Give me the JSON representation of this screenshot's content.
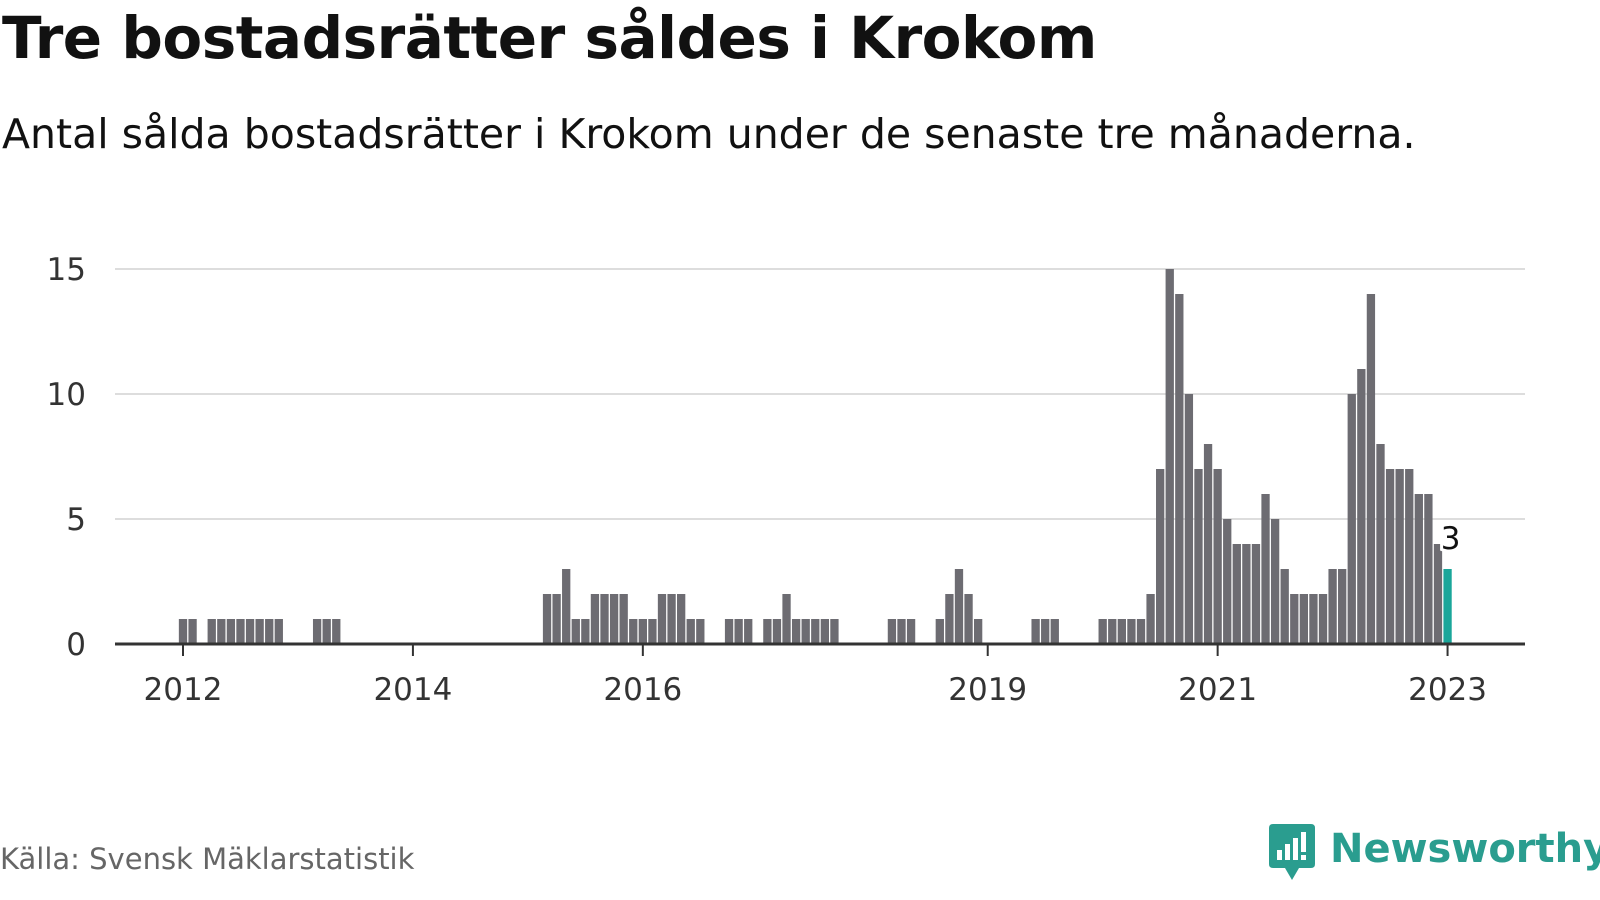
{
  "title": "Tre bostadsrätter såldes i Krokom",
  "subtitle": "Antal sålda bostadsrätter i Krokom under de senaste tre månaderna.",
  "source": "Källa: Svensk Mäklarstatistik",
  "brand": {
    "name": "Newsworthy",
    "icon": "newsworthy-logo-icon",
    "color": "#2a9d8f"
  },
  "colors": {
    "bar": "#6d6c72",
    "highlight": "#1aa69a",
    "grid": "#dddddd",
    "axis": "#333333"
  },
  "chart_data": {
    "type": "bar",
    "title": "Tre bostadsrätter såldes i Krokom",
    "subtitle": "Antal sålda bostadsrätter i Krokom under de senaste tre månaderna.",
    "xlabel": "",
    "ylabel": "",
    "ylim": [
      0,
      15
    ],
    "yticks": [
      0,
      5,
      10,
      15
    ],
    "xticks": [
      {
        "label": "2012",
        "month": "2012-01"
      },
      {
        "label": "2014",
        "month": "2014-01"
      },
      {
        "label": "2016",
        "month": "2016-01"
      },
      {
        "label": "2019",
        "month": "2019-01"
      },
      {
        "label": "2021",
        "month": "2021-01"
      },
      {
        "label": "2023",
        "month": "2023-01"
      }
    ],
    "grid": true,
    "legend": "none",
    "x_start": "2011-07",
    "x_end": "2023-06",
    "highlight_month": "2023-01",
    "data_labels": [
      {
        "month": "2023-01",
        "text": "3"
      }
    ],
    "bars": [
      {
        "month": "2012-01",
        "value": 1
      },
      {
        "month": "2012-02",
        "value": 1
      },
      {
        "month": "2012-04",
        "value": 1
      },
      {
        "month": "2012-05",
        "value": 1
      },
      {
        "month": "2012-06",
        "value": 1
      },
      {
        "month": "2012-07",
        "value": 1
      },
      {
        "month": "2012-08",
        "value": 1
      },
      {
        "month": "2012-09",
        "value": 1
      },
      {
        "month": "2012-10",
        "value": 1
      },
      {
        "month": "2012-11",
        "value": 1
      },
      {
        "month": "2013-03",
        "value": 1
      },
      {
        "month": "2013-04",
        "value": 1
      },
      {
        "month": "2013-05",
        "value": 1
      },
      {
        "month": "2015-03",
        "value": 2
      },
      {
        "month": "2015-04",
        "value": 2
      },
      {
        "month": "2015-05",
        "value": 3
      },
      {
        "month": "2015-06",
        "value": 1
      },
      {
        "month": "2015-07",
        "value": 1
      },
      {
        "month": "2015-08",
        "value": 2
      },
      {
        "month": "2015-09",
        "value": 2
      },
      {
        "month": "2015-10",
        "value": 2
      },
      {
        "month": "2015-11",
        "value": 2
      },
      {
        "month": "2015-12",
        "value": 1
      },
      {
        "month": "2016-01",
        "value": 1
      },
      {
        "month": "2016-02",
        "value": 1
      },
      {
        "month": "2016-03",
        "value": 2
      },
      {
        "month": "2016-04",
        "value": 2
      },
      {
        "month": "2016-05",
        "value": 2
      },
      {
        "month": "2016-06",
        "value": 1
      },
      {
        "month": "2016-07",
        "value": 1
      },
      {
        "month": "2016-10",
        "value": 1
      },
      {
        "month": "2016-11",
        "value": 1
      },
      {
        "month": "2016-12",
        "value": 1
      },
      {
        "month": "2017-02",
        "value": 1
      },
      {
        "month": "2017-03",
        "value": 1
      },
      {
        "month": "2017-04",
        "value": 2
      },
      {
        "month": "2017-05",
        "value": 1
      },
      {
        "month": "2017-06",
        "value": 1
      },
      {
        "month": "2017-07",
        "value": 1
      },
      {
        "month": "2017-08",
        "value": 1
      },
      {
        "month": "2017-09",
        "value": 1
      },
      {
        "month": "2018-03",
        "value": 1
      },
      {
        "month": "2018-04",
        "value": 1
      },
      {
        "month": "2018-05",
        "value": 1
      },
      {
        "month": "2018-08",
        "value": 1
      },
      {
        "month": "2018-09",
        "value": 2
      },
      {
        "month": "2018-10",
        "value": 3
      },
      {
        "month": "2018-11",
        "value": 2
      },
      {
        "month": "2018-12",
        "value": 1
      },
      {
        "month": "2019-06",
        "value": 1
      },
      {
        "month": "2019-07",
        "value": 1
      },
      {
        "month": "2019-08",
        "value": 1
      },
      {
        "month": "2020-01",
        "value": 1
      },
      {
        "month": "2020-02",
        "value": 1
      },
      {
        "month": "2020-03",
        "value": 1
      },
      {
        "month": "2020-04",
        "value": 1
      },
      {
        "month": "2020-05",
        "value": 1
      },
      {
        "month": "2020-06",
        "value": 2
      },
      {
        "month": "2020-07",
        "value": 7
      },
      {
        "month": "2020-08",
        "value": 15
      },
      {
        "month": "2020-09",
        "value": 14
      },
      {
        "month": "2020-10",
        "value": 10
      },
      {
        "month": "2020-11",
        "value": 7
      },
      {
        "month": "2020-12",
        "value": 8
      },
      {
        "month": "2021-01",
        "value": 7
      },
      {
        "month": "2021-02",
        "value": 5
      },
      {
        "month": "2021-03",
        "value": 4
      },
      {
        "month": "2021-04",
        "value": 4
      },
      {
        "month": "2021-05",
        "value": 4
      },
      {
        "month": "2021-06",
        "value": 6
      },
      {
        "month": "2021-07",
        "value": 5
      },
      {
        "month": "2021-08",
        "value": 3
      },
      {
        "month": "2021-09",
        "value": 2
      },
      {
        "month": "2021-10",
        "value": 2
      },
      {
        "month": "2021-11",
        "value": 2
      },
      {
        "month": "2021-12",
        "value": 2
      },
      {
        "month": "2022-01",
        "value": 3
      },
      {
        "month": "2022-02",
        "value": 3
      },
      {
        "month": "2022-03",
        "value": 10
      },
      {
        "month": "2022-04",
        "value": 11
      },
      {
        "month": "2022-05",
        "value": 14
      },
      {
        "month": "2022-06",
        "value": 8
      },
      {
        "month": "2022-07",
        "value": 7
      },
      {
        "month": "2022-08",
        "value": 7
      },
      {
        "month": "2022-09",
        "value": 7
      },
      {
        "month": "2022-10",
        "value": 6
      },
      {
        "month": "2022-11",
        "value": 6
      },
      {
        "month": "2022-12",
        "value": 4
      },
      {
        "month": "2023-01",
        "value": 3
      }
    ]
  }
}
